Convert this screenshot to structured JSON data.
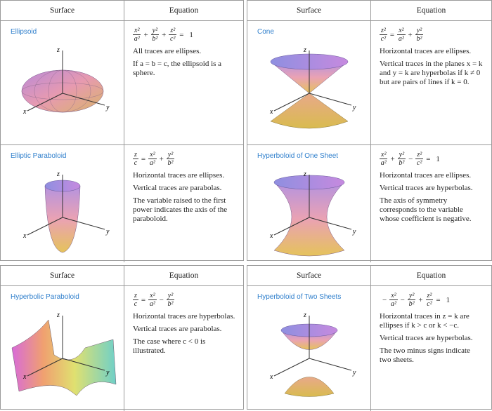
{
  "panels": [
    {
      "headers": [
        "Surface",
        "Equation"
      ],
      "rows": [
        {
          "name": "Ellipsoid",
          "equation": [
            {
              "num": "x²",
              "den": "a²"
            },
            "+",
            {
              "num": "y²",
              "den": "b²"
            },
            "+",
            {
              "num": "z²",
              "den": "c²"
            },
            "=",
            "1"
          ],
          "notes": [
            "All traces are ellipses.",
            "If a = b = c, the ellipsoid is a sphere."
          ],
          "axis_labels": [
            "z",
            "y",
            "x"
          ]
        },
        {
          "name": "Elliptic Paraboloid",
          "equation": [
            {
              "num": "z",
              "den": "c"
            },
            "=",
            {
              "num": "x²",
              "den": "a²"
            },
            "+",
            {
              "num": "y²",
              "den": "b²"
            }
          ],
          "notes": [
            "Horizontal traces are ellipses.",
            "Vertical traces are parabolas.",
            "The variable raised to the first power indicates the axis of the paraboloid."
          ],
          "axis_labels": [
            "z",
            "y",
            "x"
          ]
        }
      ]
    },
    {
      "headers": [
        "Surface",
        "Equation"
      ],
      "rows": [
        {
          "name": "Cone",
          "equation": [
            {
              "num": "z²",
              "den": "c²"
            },
            "=",
            {
              "num": "x²",
              "den": "a²"
            },
            "+",
            {
              "num": "y²",
              "den": "b²"
            }
          ],
          "notes": [
            "Horizontal traces are ellipses.",
            "Vertical traces in the planes x = k and y = k are hyperbolas if k ≠ 0 but are pairs of lines if k = 0."
          ],
          "axis_labels": [
            "z",
            "y",
            "x"
          ]
        },
        {
          "name": "Hyperboloid of One Sheet",
          "equation": [
            {
              "num": "x²",
              "den": "a²"
            },
            "+",
            {
              "num": "y²",
              "den": "b²"
            },
            "−",
            {
              "num": "z²",
              "den": "c²"
            },
            "=",
            "1"
          ],
          "notes": [
            "Horizontal traces are ellipses.",
            "Vertical traces are hyperbolas.",
            "The axis of symmetry corresponds to the variable whose coefficient is negative."
          ],
          "axis_labels": [
            "z",
            "y",
            "x"
          ]
        }
      ]
    },
    {
      "headers": [
        "Surface",
        "Equation"
      ],
      "rows": [
        {
          "name": "Hyperbolic Paraboloid",
          "equation": [
            {
              "num": "z",
              "den": "c"
            },
            "=",
            {
              "num": "x²",
              "den": "a²"
            },
            "−",
            {
              "num": "y²",
              "den": "b²"
            }
          ],
          "notes": [
            "Horizontal traces are hyperbolas.",
            "Vertical traces are parabolas.",
            "The case where c < 0 is illustrated."
          ],
          "axis_labels": [
            "z",
            "y",
            "x"
          ]
        }
      ]
    },
    {
      "headers": [
        "Surface",
        "Equation"
      ],
      "rows": [
        {
          "name": "Hyperboloid of Two Sheets",
          "equation": [
            "−",
            {
              "num": "x²",
              "den": "a²"
            },
            "−",
            {
              "num": "y²",
              "den": "b²"
            },
            "+",
            {
              "num": "z²",
              "den": "c²"
            },
            "=",
            "1"
          ],
          "notes": [
            "Horizontal traces in z = k are ellipses if k > c or k < −c.",
            "Vertical traces are hyperbolas.",
            "The two minus signs indicate two sheets."
          ],
          "axis_labels": [
            "z",
            "y",
            "x"
          ]
        }
      ]
    }
  ]
}
